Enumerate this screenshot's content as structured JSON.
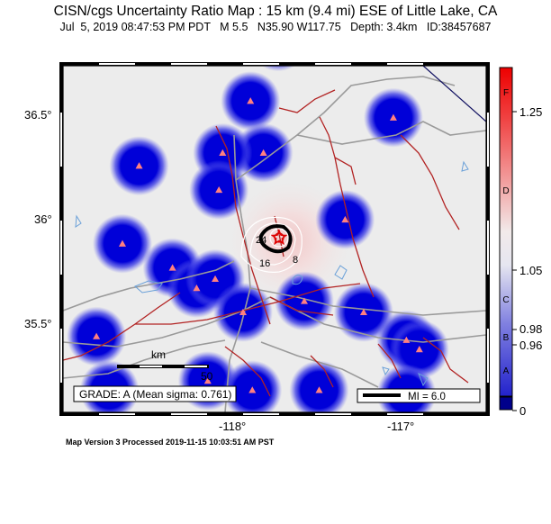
{
  "title": "CISN/cgs Uncertainty Ratio Map : 15 km (9.4 mi) ESE of Little Lake, CA",
  "subtitle": "Jul  5, 2019 08:47:53 PM PDT   M 5.5   N35.90 W117.75   Depth: 3.4km   ID:38457687",
  "footer": "Map Version 3 Processed 2019-11-15 10:03:51 AM PST",
  "lat_labels": [
    "36.5°",
    "36°",
    "35.5°"
  ],
  "lon_labels": [
    "-118°",
    "-117°"
  ],
  "scale_bar": {
    "unit": "km",
    "max": "50"
  },
  "grade_box": "GRADE: A (Mean sigma: 0.761)",
  "mi_legend": "MI = 6.0",
  "contour_labels": [
    "24",
    "16",
    "8"
  ],
  "colorbar": {
    "letters": [
      "F",
      "D",
      "C",
      "B",
      "A"
    ],
    "ticks": [
      "1.25",
      "1.05",
      "0.98",
      "0.96",
      "0"
    ]
  },
  "colors": {
    "station_blue": "#0000dd",
    "fault": "#b22222",
    "boundary": "#9a9a9a",
    "epicenter": "#e00000"
  },
  "stations": [
    {
      "lon": -117.64,
      "lat": 36.88
    },
    {
      "lon": -117.79,
      "lat": 36.56
    },
    {
      "lon": -117.02,
      "lat": 36.47
    },
    {
      "lon": -118.39,
      "lat": 36.21
    },
    {
      "lon": -117.72,
      "lat": 36.28
    },
    {
      "lon": -117.94,
      "lat": 36.28
    },
    {
      "lon": -117.96,
      "lat": 36.08
    },
    {
      "lon": -117.28,
      "lat": 35.92
    },
    {
      "lon": -118.48,
      "lat": 35.79
    },
    {
      "lon": -118.21,
      "lat": 35.66
    },
    {
      "lon": -118.08,
      "lat": 35.55
    },
    {
      "lon": -117.98,
      "lat": 35.6
    },
    {
      "lon": -117.83,
      "lat": 35.42
    },
    {
      "lon": -117.5,
      "lat": 35.48
    },
    {
      "lon": -117.18,
      "lat": 35.42
    },
    {
      "lon": -118.62,
      "lat": 35.29
    },
    {
      "lon": -116.95,
      "lat": 35.27
    },
    {
      "lon": -116.88,
      "lat": 35.22
    },
    {
      "lon": -118.02,
      "lat": 35.05
    },
    {
      "lon": -117.78,
      "lat": 35.0
    },
    {
      "lon": -117.42,
      "lat": 35.0
    },
    {
      "lon": -116.95,
      "lat": 34.98
    },
    {
      "lon": -118.55,
      "lat": 35.0
    }
  ],
  "epicenter": {
    "lon": -117.75,
    "lat": 35.9
  }
}
